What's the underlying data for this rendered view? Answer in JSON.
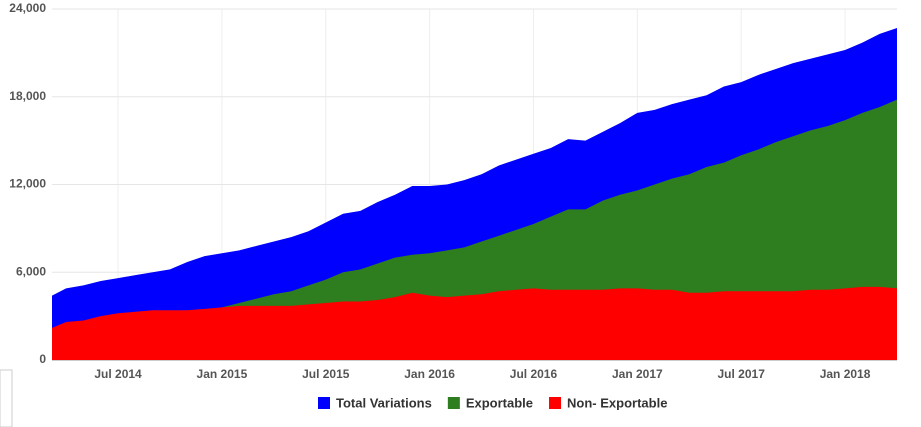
{
  "chart_data": {
    "type": "area",
    "categories": [
      null,
      null,
      null,
      null,
      "Jul 2014",
      null,
      null,
      null,
      null,
      null,
      "Jan 2015",
      null,
      null,
      null,
      null,
      null,
      "Jul 2015",
      null,
      null,
      null,
      null,
      null,
      "Jan 2016",
      null,
      null,
      null,
      null,
      null,
      "Jul 2016",
      null,
      null,
      null,
      null,
      null,
      "Jan 2017",
      null,
      null,
      null,
      null,
      null,
      "Jul 2017",
      null,
      null,
      null,
      null,
      null,
      "Jan 2018",
      null,
      null,
      null
    ],
    "series": [
      {
        "name": "Total Variations",
        "color": "#0000ff",
        "values": [
          4400,
          4900,
          5100,
          5400,
          5600,
          5800,
          6000,
          6200,
          6700,
          7100,
          7300,
          7500,
          7800,
          8100,
          8400,
          8800,
          9400,
          10000,
          10200,
          10800,
          11300,
          11900,
          11900,
          12000,
          12300,
          12700,
          13300,
          13700,
          14100,
          14500,
          15100,
          15000,
          15600,
          16200,
          16900,
          17100,
          17500,
          17800,
          18100,
          18700,
          19000,
          19500,
          19900,
          20300,
          20600,
          20900,
          21200,
          21700,
          22300,
          22700
        ]
      },
      {
        "name": "Exportable",
        "color": "#2e7d1e",
        "values": [
          1500,
          1800,
          2100,
          2200,
          2200,
          2300,
          2500,
          2600,
          3100,
          3400,
          3600,
          3900,
          4200,
          4500,
          4700,
          5100,
          5500,
          6000,
          6200,
          6600,
          7000,
          7200,
          7300,
          7500,
          7700,
          8100,
          8500,
          8900,
          9300,
          9800,
          10300,
          10300,
          10900,
          11300,
          11600,
          12000,
          12400,
          12700,
          13200,
          13500,
          14000,
          14400,
          14900,
          15300,
          15700,
          16000,
          16400,
          16900,
          17300,
          17800
        ]
      },
      {
        "name": "Non- Exportable",
        "color": "#ff0000",
        "values": [
          2200,
          2600,
          2700,
          3000,
          3200,
          3300,
          3400,
          3400,
          3400,
          3500,
          3600,
          3700,
          3700,
          3700,
          3700,
          3800,
          3900,
          4000,
          4000,
          4100,
          4300,
          4600,
          4400,
          4300,
          4400,
          4500,
          4700,
          4800,
          4900,
          4800,
          4800,
          4800,
          4800,
          4900,
          4900,
          4800,
          4800,
          4600,
          4600,
          4700,
          4700,
          4700,
          4700,
          4700,
          4800,
          4800,
          4900,
          5000,
          5000,
          4900
        ]
      }
    ],
    "ylim": [
      0,
      24000
    ],
    "yticks": [
      0,
      {
        "value": 6000,
        "label": "6,000"
      },
      {
        "value": 12000,
        "label": "12,000"
      },
      {
        "value": 18000,
        "label": "18,000"
      },
      {
        "value": 24000,
        "label": "24,000"
      }
    ],
    "grid": true,
    "legend": "bottom"
  }
}
